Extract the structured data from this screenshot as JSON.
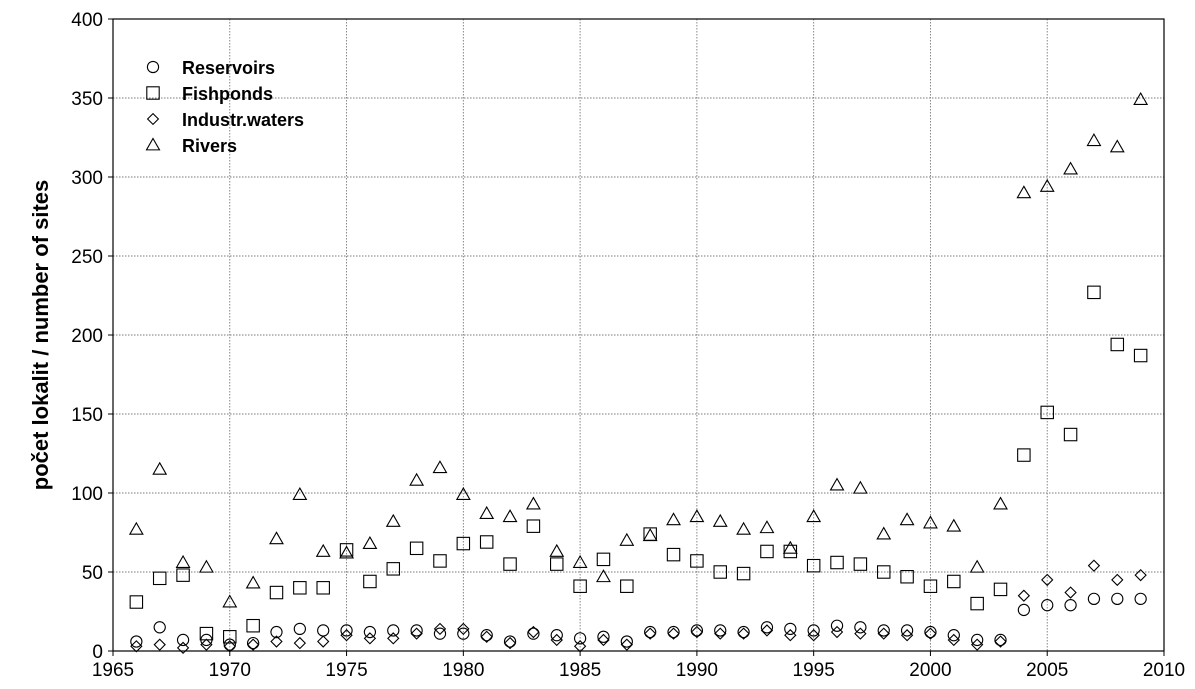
{
  "chart_data": {
    "type": "scatter",
    "title": "",
    "xlabel": "",
    "ylabel": "počet lokalit / number of sites",
    "xlim": [
      1965,
      2010
    ],
    "ylim": [
      0,
      400
    ],
    "xticks": [
      1965,
      1970,
      1975,
      1980,
      1985,
      1990,
      1995,
      2000,
      2005,
      2010
    ],
    "yticks": [
      0,
      50,
      100,
      150,
      200,
      250,
      300,
      350,
      400
    ],
    "grid": true,
    "legend_position": "top-left",
    "series": [
      {
        "name": "Reservoirs",
        "marker": "circle",
        "x": [
          1966,
          1967,
          1968,
          1969,
          1970,
          1971,
          1972,
          1973,
          1974,
          1975,
          1976,
          1977,
          1978,
          1979,
          1980,
          1981,
          1982,
          1983,
          1984,
          1985,
          1986,
          1987,
          1988,
          1989,
          1990,
          1991,
          1992,
          1993,
          1994,
          1995,
          1996,
          1997,
          1998,
          1999,
          2000,
          2001,
          2002,
          2003,
          2004,
          2005,
          2006,
          2007,
          2008,
          2009
        ],
        "y": [
          6,
          15,
          7,
          7,
          4,
          5,
          12,
          14,
          13,
          13,
          12,
          13,
          13,
          11,
          11,
          10,
          6,
          11,
          10,
          8,
          9,
          6,
          12,
          12,
          13,
          13,
          12,
          15,
          14,
          13,
          16,
          15,
          13,
          13,
          12,
          10,
          7,
          7,
          26,
          29,
          29,
          33,
          33,
          33
        ]
      },
      {
        "name": "Fishponds",
        "marker": "square",
        "x": [
          1966,
          1967,
          1968,
          1969,
          1970,
          1971,
          1972,
          1973,
          1974,
          1975,
          1976,
          1977,
          1978,
          1979,
          1980,
          1981,
          1982,
          1983,
          1984,
          1985,
          1986,
          1987,
          1988,
          1989,
          1990,
          1991,
          1992,
          1993,
          1994,
          1995,
          1996,
          1997,
          1998,
          1999,
          2000,
          2001,
          2002,
          2003,
          2004,
          2005,
          2006,
          2007,
          2008,
          2009
        ],
        "y": [
          31,
          46,
          48,
          11,
          9,
          16,
          37,
          40,
          40,
          64,
          44,
          52,
          65,
          57,
          68,
          69,
          55,
          79,
          55,
          41,
          58,
          41,
          74,
          61,
          57,
          50,
          49,
          63,
          63,
          54,
          56,
          55,
          50,
          47,
          41,
          44,
          30,
          39,
          124,
          151,
          137,
          227,
          194,
          187
        ]
      },
      {
        "name": "Industr.waters",
        "marker": "diamond",
        "x": [
          1966,
          1967,
          1968,
          1969,
          1970,
          1971,
          1972,
          1973,
          1974,
          1975,
          1976,
          1977,
          1978,
          1979,
          1980,
          1981,
          1982,
          1983,
          1984,
          1985,
          1986,
          1987,
          1988,
          1989,
          1990,
          1991,
          1992,
          1993,
          1994,
          1995,
          1996,
          1997,
          1998,
          1999,
          2000,
          2001,
          2002,
          2003,
          2004,
          2005,
          2006,
          2007,
          2008,
          2009
        ],
        "y": [
          3,
          4,
          2,
          4,
          3,
          4,
          6,
          5,
          6,
          10,
          8,
          8,
          11,
          14,
          14,
          9,
          5,
          12,
          7,
          3,
          7,
          4,
          11,
          11,
          12,
          11,
          11,
          13,
          10,
          10,
          12,
          11,
          11,
          10,
          11,
          7,
          4,
          6,
          35,
          45,
          37,
          54,
          45,
          48
        ]
      },
      {
        "name": "Rivers",
        "marker": "triangle",
        "x": [
          1966,
          1967,
          1968,
          1969,
          1970,
          1971,
          1972,
          1973,
          1974,
          1975,
          1976,
          1977,
          1978,
          1979,
          1980,
          1981,
          1982,
          1983,
          1984,
          1985,
          1986,
          1987,
          1988,
          1989,
          1990,
          1991,
          1992,
          1993,
          1994,
          1995,
          1996,
          1997,
          1998,
          1999,
          2000,
          2001,
          2002,
          2003,
          2004,
          2005,
          2006,
          2007,
          2008,
          2009
        ],
        "y": [
          77,
          115,
          56,
          53,
          31,
          43,
          71,
          99,
          63,
          62,
          68,
          82,
          108,
          116,
          99,
          87,
          85,
          93,
          63,
          56,
          47,
          70,
          73,
          83,
          85,
          82,
          77,
          78,
          65,
          85,
          105,
          103,
          74,
          83,
          81,
          79,
          53,
          93,
          290,
          294,
          305,
          323,
          319,
          349
        ]
      }
    ]
  }
}
